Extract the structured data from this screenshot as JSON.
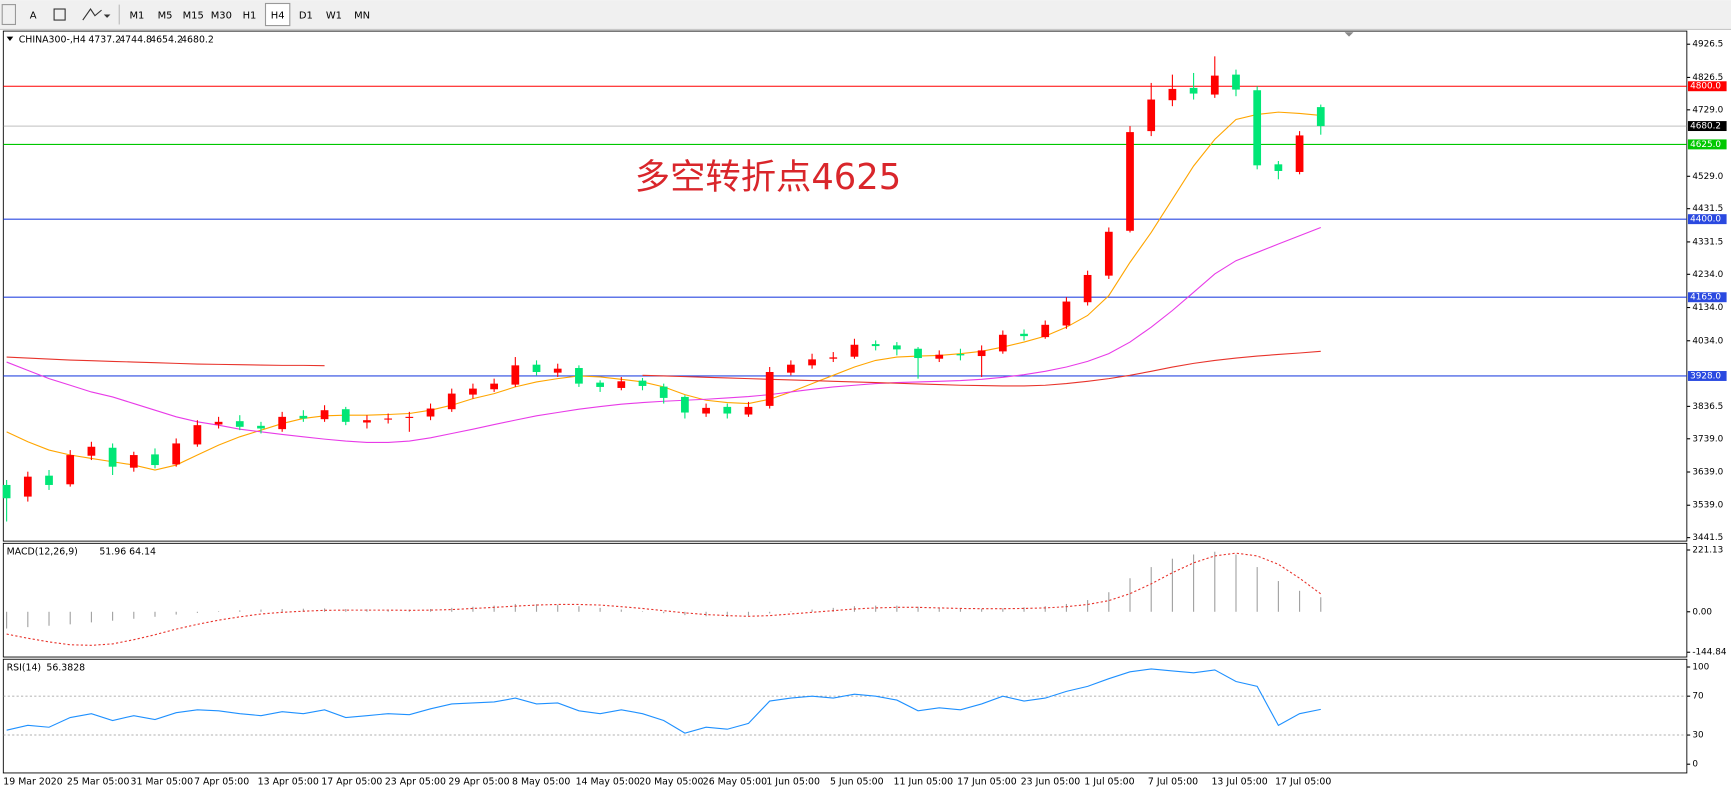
{
  "toolbar": {
    "tools": [
      "A"
    ],
    "timeframes": [
      "M1",
      "M5",
      "M15",
      "M30",
      "H1",
      "H4",
      "D1",
      "W1",
      "MN"
    ],
    "active": "H4"
  },
  "chart_data": [
    {
      "type": "candlestick",
      "title": "CHINA300-,H4",
      "annotation": "多空转折点4625",
      "x": [
        "19 Mar 2020",
        null,
        null,
        "25 Mar 05:00",
        null,
        null,
        "31 Mar 05:00",
        null,
        null,
        "7 Apr 05:00",
        null,
        null,
        "13 Apr 05:00",
        null,
        null,
        "17 Apr 05:00",
        null,
        null,
        "23 Apr 05:00",
        null,
        null,
        "29 Apr 05:00",
        null,
        null,
        "8 May 05:00",
        null,
        null,
        "14 May 05:00",
        null,
        null,
        "20 May 05:00",
        null,
        null,
        "26 May 05:00",
        null,
        null,
        "1 Jun 05:00",
        null,
        null,
        "5 Jun 05:00",
        null,
        null,
        "11 Jun 05:00",
        null,
        null,
        "17 Jun 05:00",
        null,
        null,
        "23 Jun 05:00",
        null,
        null,
        "1 Jul 05:00",
        null,
        null,
        "7 Jul 05:00",
        null,
        null,
        "13 Jul 05:00",
        null,
        null,
        "17 Jul 05:00",
        null,
        null
      ],
      "open": [
        3600,
        3565,
        3628,
        3602,
        3688,
        3712,
        3652,
        3692,
        3662,
        3722,
        3782,
        3792,
        3778,
        3768,
        3808,
        3798,
        3828,
        3788,
        3797,
        3802,
        3806,
        3828,
        3872,
        3888,
        3902,
        3962,
        3938,
        3952,
        3908,
        3892,
        3914,
        3896,
        3865,
        3815,
        3835,
        3812,
        3838,
        3938,
        3960,
        3980,
        3986,
        4024,
        4020,
        4010,
        3980,
        3994,
        3988,
        4002,
        4055,
        4045,
        4080,
        4150,
        4230,
        4365,
        4665,
        4758,
        4795,
        4775,
        4835,
        4788,
        4565,
        4542,
        4737.2
      ],
      "high": [
        3615,
        3640,
        3645,
        3705,
        3730,
        3725,
        3700,
        3710,
        3740,
        3795,
        3805,
        3810,
        3790,
        3820,
        3825,
        3840,
        3835,
        3810,
        3815,
        3820,
        3845,
        3890,
        3905,
        3920,
        3985,
        3975,
        3965,
        3960,
        3915,
        3925,
        3922,
        3905,
        3870,
        3845,
        3845,
        3850,
        3955,
        3975,
        3995,
        4000,
        4040,
        4035,
        4030,
        4015,
        4005,
        4010,
        4020,
        4065,
        4068,
        4095,
        4165,
        4245,
        4375,
        4680,
        4810,
        4835,
        4840,
        4890,
        4850,
        4800,
        4575,
        4665,
        4744.8
      ],
      "low": [
        3490,
        3550,
        3585,
        3595,
        3675,
        3630,
        3640,
        3650,
        3655,
        3715,
        3770,
        3765,
        3755,
        3760,
        3790,
        3790,
        3780,
        3770,
        3785,
        3760,
        3795,
        3820,
        3860,
        3880,
        3895,
        3930,
        3925,
        3895,
        3880,
        3885,
        3885,
        3845,
        3800,
        3805,
        3800,
        3805,
        3830,
        3930,
        3950,
        3970,
        3980,
        4005,
        3990,
        3920,
        3970,
        3975,
        3925,
        3995,
        4035,
        4040,
        4070,
        4140,
        4220,
        4360,
        4650,
        4740,
        4760,
        4765,
        4770,
        4550,
        4520,
        4535,
        4654.2
      ],
      "close": [
        3560,
        3625,
        3600,
        3690,
        3715,
        3655,
        3690,
        3660,
        3725,
        3780,
        3790,
        3775,
        3770,
        3805,
        3800,
        3825,
        3790,
        3795,
        3800,
        3805,
        3830,
        3875,
        3890,
        3905,
        3960,
        3940,
        3950,
        3905,
        3895,
        3912,
        3898,
        3862,
        3818,
        3832,
        3815,
        3835,
        3940,
        3962,
        3978,
        3984,
        4022,
        4018,
        4008,
        3982,
        3992,
        3990,
        4005,
        4052,
        4048,
        4082,
        4152,
        4232,
        4362,
        4662,
        4760,
        4792,
        4778,
        4832,
        4790,
        4562,
        4545,
        4652,
        4680.2
      ],
      "up_color": "#ff0000",
      "down_color": "#00e676",
      "series": [
        {
          "color": "#ffa500",
          "values": [
            3760,
            3730,
            3705,
            3690,
            3680,
            3670,
            3660,
            3645,
            3660,
            3690,
            3720,
            3745,
            3765,
            3785,
            3800,
            3808,
            3810,
            3810,
            3812,
            3815,
            3825,
            3840,
            3860,
            3875,
            3895,
            3910,
            3920,
            3928,
            3925,
            3918,
            3910,
            3895,
            3872,
            3855,
            3848,
            3845,
            3858,
            3880,
            3905,
            3930,
            3955,
            3975,
            3985,
            3988,
            3990,
            3995,
            4002,
            4015,
            4030,
            4048,
            4075,
            4110,
            4170,
            4270,
            4360,
            4460,
            4560,
            4640,
            4700,
            4715,
            4722,
            4718,
            4712
          ]
        },
        {
          "color": "#e83be8",
          "values": [
            3970,
            3945,
            3920,
            3900,
            3880,
            3865,
            3845,
            3825,
            3805,
            3790,
            3780,
            3768,
            3760,
            3752,
            3745,
            3738,
            3732,
            3728,
            3728,
            3732,
            3742,
            3755,
            3768,
            3782,
            3795,
            3808,
            3818,
            3828,
            3836,
            3843,
            3848,
            3852,
            3855,
            3858,
            3862,
            3866,
            3872,
            3880,
            3888,
            3895,
            3900,
            3905,
            3908,
            3910,
            3912,
            3914,
            3918,
            3924,
            3932,
            3942,
            3955,
            3972,
            3995,
            4030,
            4075,
            4125,
            4180,
            4235,
            4275,
            4300,
            4325,
            4350,
            4375
          ]
        },
        {
          "color": "#e8342c",
          "values": [
            3985,
            3982,
            3979,
            3976,
            3974,
            3972,
            3970,
            3968,
            3966,
            3964,
            3963,
            3962,
            3961,
            3960,
            3960,
            3959,
            null,
            null,
            null,
            null,
            null,
            null,
            null,
            null,
            null,
            null,
            null,
            null,
            null,
            null,
            3930,
            3928,
            3926,
            3924,
            3922,
            3920,
            3918,
            3916,
            3914,
            3912,
            3910,
            3908,
            3906,
            3904,
            3902,
            3900,
            3899,
            3898,
            3898,
            3900,
            3905,
            3912,
            3920,
            3930,
            3942,
            3955,
            3966,
            3975,
            3982,
            3988,
            3993,
            3997,
            4002
          ]
        }
      ],
      "hlines": [
        {
          "value": 4800,
          "label": "4800.0",
          "color": "#ff0000"
        },
        {
          "value": 4625,
          "label": "4625.0",
          "color": "#00c800"
        },
        {
          "value": 4400,
          "label": "4400.0",
          "color": "#2a49e0"
        },
        {
          "value": 4165,
          "label": "4165.0",
          "color": "#2a49e0"
        },
        {
          "value": 3928,
          "label": "3928.0",
          "color": "#2a49e0"
        }
      ],
      "ylim": [
        3431,
        4966
      ],
      "yticks": [
        4926.5,
        4826.5,
        {
          "value": 4729,
          "label": "4729.0"
        },
        {
          "value": 4529,
          "label": "4529.0"
        },
        4431.5,
        4331.5,
        {
          "value": 4234,
          "label": "4234.0"
        },
        {
          "value": 4134,
          "label": "4134.0"
        },
        {
          "value": 4034,
          "label": "4034.0"
        },
        3836.5,
        {
          "value": 3739,
          "label": "3739.0"
        },
        {
          "value": 3639,
          "label": "3639.0"
        },
        {
          "value": 3539,
          "label": "3539.0"
        },
        3441.5
      ]
    },
    {
      "type": "macd",
      "title": "MACD(12,26,9)",
      "color": "#a0a0a0",
      "signal_color": "#e8342c",
      "values": [
        -60,
        -55,
        -50,
        -45,
        -38,
        -32,
        -25,
        -18,
        -10,
        -4,
        2,
        5,
        8,
        10,
        11,
        12,
        10,
        9,
        8,
        8,
        10,
        14,
        18,
        22,
        28,
        27,
        25,
        20,
        14,
        8,
        2,
        -5,
        -12,
        -16,
        -18,
        -14,
        -6,
        2,
        8,
        14,
        20,
        22,
        22,
        18,
        14,
        12,
        10,
        12,
        16,
        20,
        28,
        42,
        70,
        120,
        160,
        190,
        205,
        215,
        205,
        160,
        110,
        75,
        51.96
      ],
      "signal": [
        -80,
        -95,
        -108,
        -118,
        -120,
        -115,
        -100,
        -82,
        -62,
        -45,
        -30,
        -18,
        -8,
        -2,
        2,
        5,
        6,
        6,
        6,
        5,
        6,
        8,
        12,
        16,
        20,
        24,
        26,
        26,
        24,
        18,
        12,
        4,
        -4,
        -10,
        -14,
        -16,
        -14,
        -8,
        -2,
        4,
        10,
        14,
        16,
        16,
        14,
        12,
        11,
        11,
        12,
        14,
        18,
        26,
        40,
        65,
        100,
        140,
        175,
        200,
        210,
        200,
        170,
        120,
        64.14
      ],
      "ylim": [
        -162,
        245
      ],
      "yticks": [
        221.13,
        {
          "value": 0,
          "label": "0.00"
        },
        -144.84
      ]
    },
    {
      "type": "rsi",
      "title": "RSI(14)",
      "color": "#1e90ff",
      "values": [
        35,
        40,
        38,
        48,
        52,
        45,
        50,
        46,
        53,
        56,
        55,
        52,
        50,
        54,
        52,
        56,
        48,
        50,
        52,
        51,
        57,
        62,
        63,
        64,
        68,
        62,
        63,
        55,
        52,
        56,
        52,
        45,
        32,
        38,
        36,
        42,
        65,
        68,
        70,
        68,
        72,
        70,
        66,
        55,
        58,
        56,
        62,
        70,
        65,
        68,
        75,
        80,
        88,
        95,
        98,
        96,
        94,
        97,
        85,
        80,
        40,
        52,
        56.3828
      ],
      "levels": [
        70,
        30
      ],
      "ylim": [
        -9,
        108
      ],
      "yticks": [
        100,
        70,
        30,
        0
      ]
    }
  ]
}
